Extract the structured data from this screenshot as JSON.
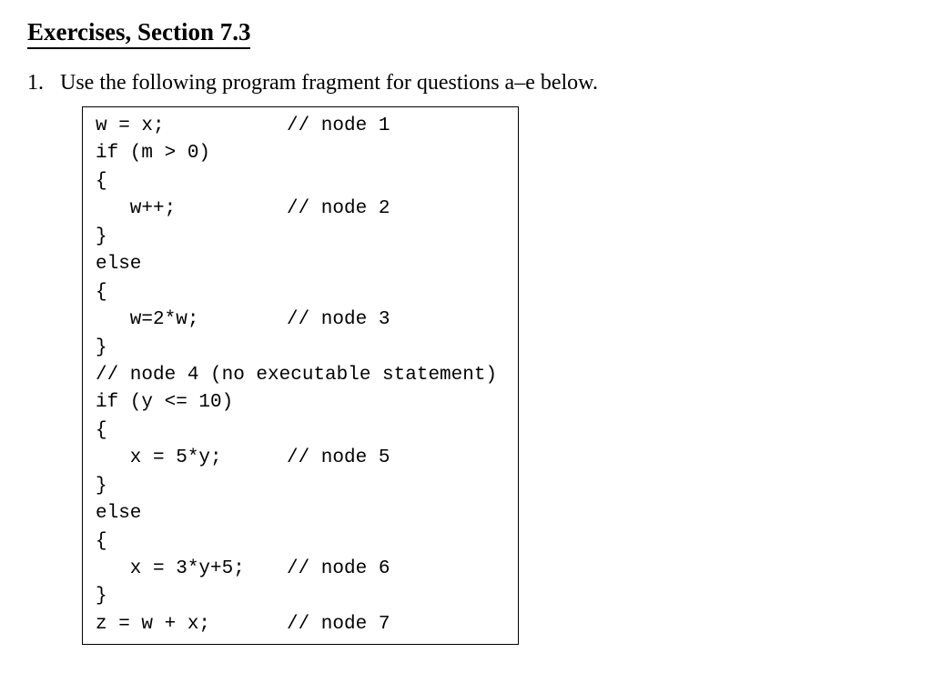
{
  "title": "Exercises, Section 7.3",
  "question": {
    "number": "1.",
    "text": "Use the following program fragment for questions a–e below."
  },
  "code": {
    "lines": [
      {
        "stmt": "w = x;",
        "comment": "// node 1"
      },
      {
        "stmt": "if (m > 0)",
        "comment": ""
      },
      {
        "stmt": "{",
        "comment": ""
      },
      {
        "stmt": "   w++;",
        "comment": "// node 2"
      },
      {
        "stmt": "}",
        "comment": ""
      },
      {
        "stmt": "else",
        "comment": ""
      },
      {
        "stmt": "{",
        "comment": ""
      },
      {
        "stmt": "   w=2*w;",
        "comment": "// node 3"
      },
      {
        "stmt": "}",
        "comment": ""
      },
      {
        "stmt": "// node 4 (no executable statement)",
        "comment": ""
      },
      {
        "stmt": "if (y <= 10)",
        "comment": ""
      },
      {
        "stmt": "{",
        "comment": ""
      },
      {
        "stmt": "   x = 5*y;",
        "comment": "// node 5"
      },
      {
        "stmt": "}",
        "comment": ""
      },
      {
        "stmt": "else",
        "comment": ""
      },
      {
        "stmt": "{",
        "comment": ""
      },
      {
        "stmt": "   x = 3*y+5;",
        "comment": "// node 6"
      },
      {
        "stmt": "}",
        "comment": ""
      },
      {
        "stmt": "z = w + x;",
        "comment": "// node 7"
      }
    ]
  },
  "layout": {
    "code_font_size": 21,
    "body_font_size": 24,
    "statement_col_width": 210,
    "code_box_width": 480
  },
  "colors": {
    "text": "#000000",
    "background": "#ffffff",
    "border": "#000000"
  }
}
